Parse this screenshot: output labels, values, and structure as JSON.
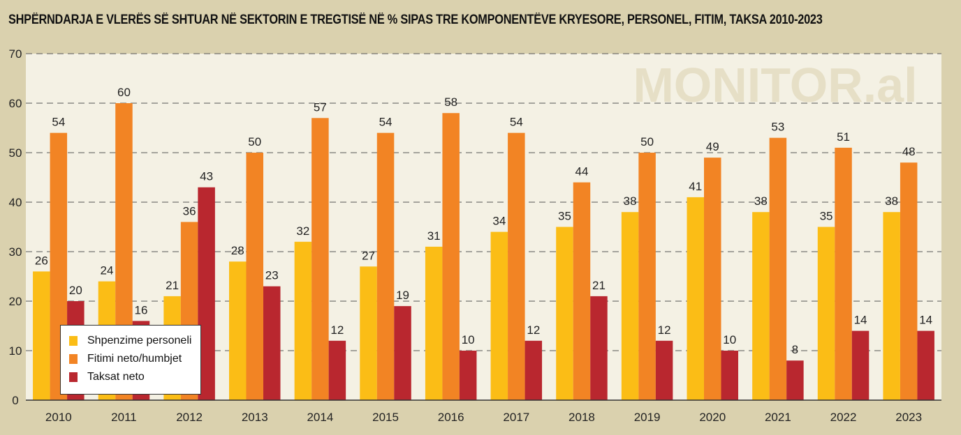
{
  "chart_data": {
    "type": "bar",
    "title": "SHPËRNDARJA E VLERËS SË SHTUAR NË SEKTORIN E TREGTISË NË % SIPAS TRE KOMPONENTËVE KRYESORE, PERSONEL, FITIM, TAKSA 2010-2023",
    "watermark": "MONITOR.al",
    "categories": [
      "2010",
      "2011",
      "2012",
      "2013",
      "2014",
      "2015",
      "2016",
      "2017",
      "2018",
      "2019",
      "2020",
      "2021",
      "2022",
      "2023"
    ],
    "series": [
      {
        "name": "Shpenzime personeli",
        "color": "#fbbd16",
        "values": [
          26,
          24,
          21,
          28,
          32,
          27,
          31,
          34,
          35,
          38,
          41,
          38,
          35,
          38
        ]
      },
      {
        "name": "Fitimi neto/humbjet",
        "color": "#f28424",
        "values": [
          54,
          60,
          36,
          50,
          57,
          54,
          58,
          54,
          44,
          50,
          49,
          53,
          51,
          48
        ]
      },
      {
        "name": "Taksat neto",
        "color": "#b9272f",
        "values": [
          20,
          16,
          43,
          23,
          12,
          19,
          10,
          12,
          21,
          12,
          10,
          8,
          14,
          14
        ]
      }
    ],
    "yticks": [
      0,
      10,
      20,
      30,
      40,
      50,
      60,
      70
    ],
    "ylim": [
      0,
      70
    ],
    "grid": true,
    "legend": "bottom-left"
  }
}
